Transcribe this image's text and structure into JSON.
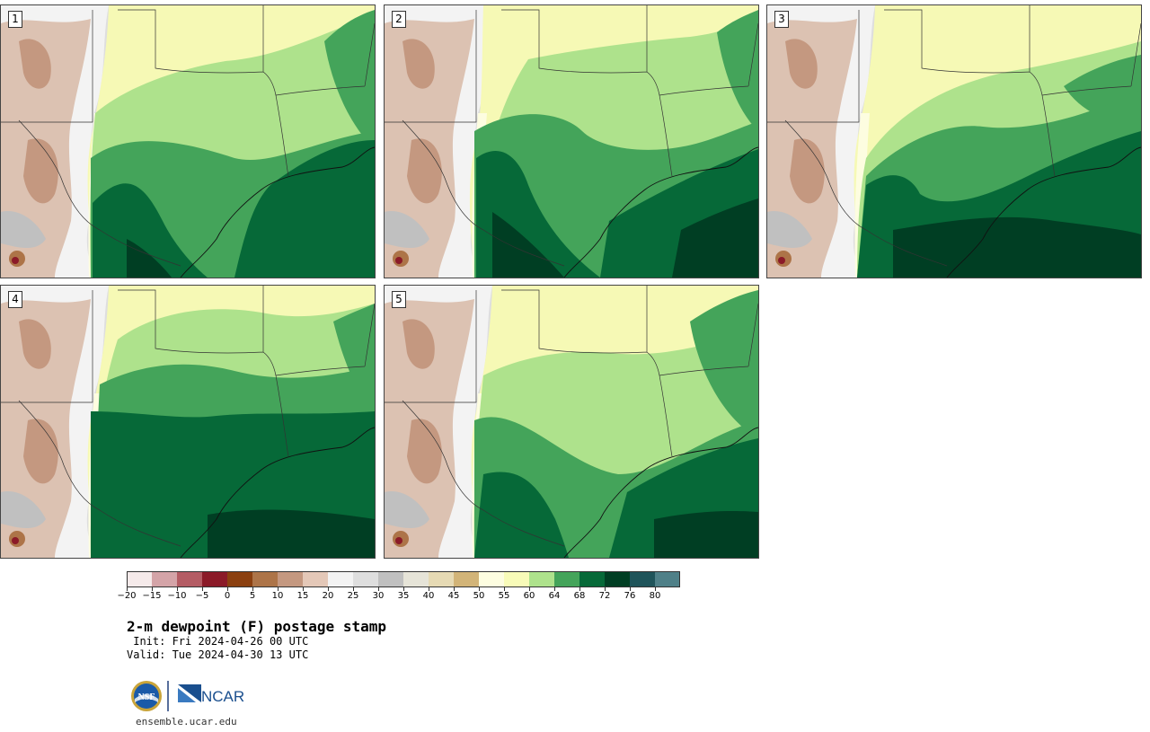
{
  "product": {
    "title": "2-m dewpoint (F) postage stamp",
    "init": " Init: Fri 2024-04-26 00 UTC",
    "valid": "Valid: Tue 2024-04-30 13 UTC",
    "site": "ensemble.ucar.edu"
  },
  "logos": {
    "nsf": "NSF",
    "ncar": "NCAR"
  },
  "panels": [
    {
      "label": "1",
      "variant": 1
    },
    {
      "label": "2",
      "variant": 2
    },
    {
      "label": "3",
      "variant": 3
    },
    {
      "label": "4",
      "variant": 4
    },
    {
      "label": "5",
      "variant": 5
    }
  ],
  "colorbar": {
    "colors": [
      "#f5eaea",
      "#d4a4a8",
      "#b45c64",
      "#8b1a28",
      "#8b4010",
      "#ad7448",
      "#c49880",
      "#e4c8b8",
      "#f3f3f3",
      "#dedede",
      "#c0c0c0",
      "#e6e4d8",
      "#e6dab4",
      "#d2b478",
      "#fdfde0",
      "#f8fbb8",
      "#aee28c",
      "#44a45a",
      "#066938",
      "#003e23",
      "#1f545a",
      "#4f8088"
    ],
    "ticks": [
      "−20",
      "−15",
      "−10",
      "−5",
      "0",
      "5",
      "10",
      "15",
      "20",
      "25",
      "30",
      "35",
      "40",
      "45",
      "50",
      "55",
      "60",
      "64",
      "68",
      "72",
      "76",
      "80"
    ]
  }
}
